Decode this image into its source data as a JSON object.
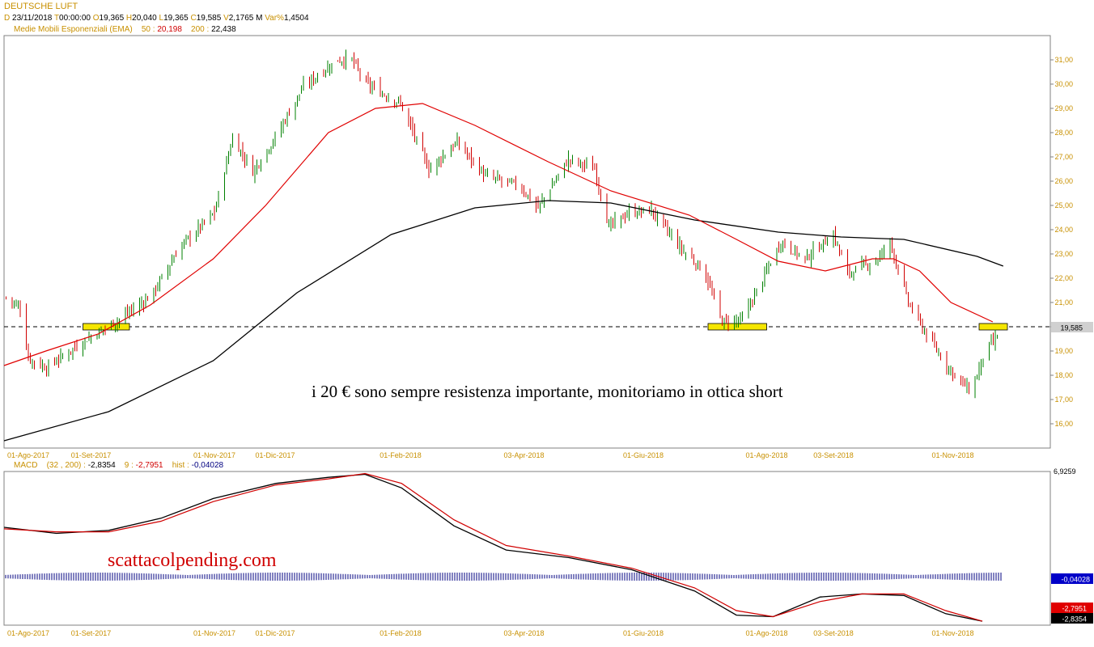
{
  "header": {
    "title": "DEUTSCHE LUFT",
    "date_key": "D",
    "date": "23/11/2018",
    "time_key": "T",
    "time": "00:00:00",
    "open_key": "O",
    "open": "19,365",
    "high_key": "H",
    "high": "20,040",
    "low_key": "L",
    "low": "19,365",
    "close_key": "C",
    "close": "19,585",
    "volume_key": "V",
    "volume": "2,1765 M",
    "var_key": "Var%",
    "var": "1,4504",
    "ema_label": "Medie Mobili Esponenziali (EMA)",
    "ema50_key": "50 :",
    "ema50": "20,198",
    "ema200_key": "200 :",
    "ema200": "22,438"
  },
  "macd_header": {
    "label": "MACD",
    "params": "(32 , 200) :",
    "macd": "-2,8354",
    "signal_key": "9 :",
    "signal": "-2,7951",
    "hist_key": "hist :",
    "hist": "-0,04028"
  },
  "annotations": {
    "comment": "i 20 € sono sempre resistenza importante, monitoriamo in ottica short",
    "watermark": "scattacolpending.com"
  },
  "colors": {
    "ema50": "#e00000",
    "ema200": "#000000",
    "candle_up": "#008000",
    "candle_down": "#d00000",
    "tick_text": "#c89000",
    "highlight": "#f5e600",
    "hist": "#000080"
  },
  "chart_data": [
    {
      "type": "candlestick",
      "ylim": [
        15.0,
        32.0
      ],
      "y_ticks": [
        "16,00",
        "17,00",
        "18,00",
        "19,00",
        "20,00",
        "21,00",
        "22,00",
        "23,00",
        "24,00",
        "25,00",
        "26,00",
        "27,00",
        "28,00",
        "29,00",
        "30,00",
        "31,00"
      ],
      "x_ticks": [
        "01-Ago-2017",
        "01-Set-2017",
        "01-Nov-2017",
        "01-Dic-2017",
        "01-Feb-2018",
        "03-Apr-2018",
        "01-Giu-2018",
        "01-Ago-2018",
        "03-Set-2018",
        "01-Nov-2018"
      ],
      "last_price_label": "19,585",
      "resistance_level": 20.0,
      "close_path": [
        [
          "2017-07-21",
          21.2
        ],
        [
          "2017-07-28",
          20.8
        ],
        [
          "2017-08-01",
          18.7
        ],
        [
          "2017-08-10",
          18.3
        ],
        [
          "2017-08-18",
          18.8
        ],
        [
          "2017-09-01",
          19.6
        ],
        [
          "2017-09-15",
          20.3
        ],
        [
          "2017-10-01",
          21.3
        ],
        [
          "2017-10-15",
          23.3
        ],
        [
          "2017-11-01",
          24.7
        ],
        [
          "2017-11-10",
          27.8
        ],
        [
          "2017-11-20",
          26.4
        ],
        [
          "2017-12-01",
          27.8
        ],
        [
          "2017-12-15",
          29.9
        ],
        [
          "2018-01-01",
          31.0
        ],
        [
          "2018-01-08",
          31.0
        ],
        [
          "2018-01-15",
          30.0
        ],
        [
          "2018-02-01",
          29.2
        ],
        [
          "2018-02-15",
          26.5
        ],
        [
          "2018-03-01",
          27.6
        ],
        [
          "2018-03-15",
          26.2
        ],
        [
          "2018-04-01",
          25.8
        ],
        [
          "2018-04-10",
          24.9
        ],
        [
          "2018-04-25",
          26.9
        ],
        [
          "2018-05-08",
          26.5
        ],
        [
          "2018-05-15",
          24.1
        ],
        [
          "2018-05-25",
          24.7
        ],
        [
          "2018-06-05",
          24.8
        ],
        [
          "2018-06-20",
          23.2
        ],
        [
          "2018-07-01",
          22.3
        ],
        [
          "2018-07-10",
          20.2
        ],
        [
          "2018-07-20",
          20.3
        ],
        [
          "2018-08-01",
          22.3
        ],
        [
          "2018-08-08",
          23.5
        ],
        [
          "2018-08-20",
          22.8
        ],
        [
          "2018-09-03",
          23.8
        ],
        [
          "2018-09-10",
          22.2
        ],
        [
          "2018-09-25",
          22.8
        ],
        [
          "2018-10-01",
          23.5
        ],
        [
          "2018-10-10",
          21.0
        ],
        [
          "2018-10-20",
          19.5
        ],
        [
          "2018-11-01",
          18.1
        ],
        [
          "2018-11-10",
          17.3
        ],
        [
          "2018-11-17",
          19.0
        ],
        [
          "2018-11-23",
          19.585
        ]
      ],
      "series": [
        {
          "name": "50",
          "last": 20.198,
          "values": [
            [
              0,
              18.4
            ],
            [
              0.04,
              19.0
            ],
            [
              0.09,
              19.7
            ],
            [
              0.14,
              20.9
            ],
            [
              0.2,
              22.8
            ],
            [
              0.25,
              25.0
            ],
            [
              0.31,
              28.0
            ],
            [
              0.355,
              29.0
            ],
            [
              0.4,
              29.2
            ],
            [
              0.45,
              28.3
            ],
            [
              0.52,
              26.8
            ],
            [
              0.58,
              25.6
            ],
            [
              0.655,
              24.6
            ],
            [
              0.7,
              23.6
            ],
            [
              0.74,
              22.7
            ],
            [
              0.785,
              22.3
            ],
            [
              0.83,
              22.8
            ],
            [
              0.85,
              22.8
            ],
            [
              0.875,
              22.3
            ],
            [
              0.905,
              21.0
            ],
            [
              0.945,
              20.2
            ]
          ]
        },
        {
          "name": "200",
          "last": 22.438,
          "values": [
            [
              0,
              15.3
            ],
            [
              0.1,
              16.5
            ],
            [
              0.2,
              18.6
            ],
            [
              0.28,
              21.4
            ],
            [
              0.37,
              23.8
            ],
            [
              0.45,
              24.9
            ],
            [
              0.52,
              25.2
            ],
            [
              0.58,
              25.1
            ],
            [
              0.66,
              24.4
            ],
            [
              0.74,
              23.9
            ],
            [
              0.8,
              23.7
            ],
            [
              0.86,
              23.6
            ],
            [
              0.93,
              22.9
            ],
            [
              0.955,
              22.5
            ]
          ]
        }
      ]
    },
    {
      "type": "line",
      "title": "MACD",
      "ylim": [
        -2.9,
        6.9259
      ],
      "y_ticks": [
        "6,9259"
      ],
      "value_labels": [
        "-0,04028",
        "-2,7951",
        "-2,8354"
      ],
      "series": [
        {
          "name": "MACD",
          "values": [
            [
              0,
              3.4
            ],
            [
              0.05,
              3.0
            ],
            [
              0.1,
              3.2
            ],
            [
              0.15,
              4.0
            ],
            [
              0.2,
              5.3
            ],
            [
              0.26,
              6.3
            ],
            [
              0.31,
              6.7
            ],
            [
              0.345,
              6.9
            ],
            [
              0.38,
              6.0
            ],
            [
              0.43,
              3.5
            ],
            [
              0.48,
              1.9
            ],
            [
              0.54,
              1.4
            ],
            [
              0.6,
              0.6
            ],
            [
              0.66,
              -0.8
            ],
            [
              0.7,
              -2.4
            ],
            [
              0.735,
              -2.5
            ],
            [
              0.78,
              -1.2
            ],
            [
              0.82,
              -1.0
            ],
            [
              0.86,
              -1.1
            ],
            [
              0.9,
              -2.3
            ],
            [
              0.935,
              -2.8
            ]
          ]
        },
        {
          "name": "9",
          "values": [
            [
              0,
              3.3
            ],
            [
              0.05,
              3.1
            ],
            [
              0.1,
              3.1
            ],
            [
              0.15,
              3.8
            ],
            [
              0.2,
              5.1
            ],
            [
              0.26,
              6.2
            ],
            [
              0.31,
              6.6
            ],
            [
              0.345,
              6.95
            ],
            [
              0.38,
              6.3
            ],
            [
              0.43,
              3.9
            ],
            [
              0.48,
              2.2
            ],
            [
              0.54,
              1.5
            ],
            [
              0.6,
              0.7
            ],
            [
              0.66,
              -0.6
            ],
            [
              0.7,
              -2.1
            ],
            [
              0.735,
              -2.5
            ],
            [
              0.78,
              -1.5
            ],
            [
              0.82,
              -1.0
            ],
            [
              0.86,
              -1.0
            ],
            [
              0.9,
              -2.1
            ],
            [
              0.935,
              -2.8
            ]
          ]
        },
        {
          "name": "hist",
          "last": -0.04028
        }
      ]
    }
  ]
}
